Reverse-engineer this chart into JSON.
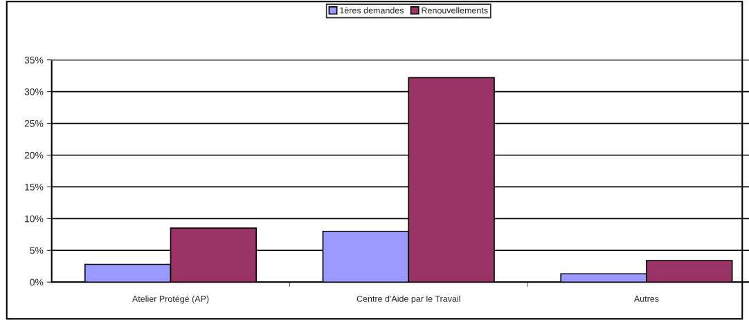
{
  "chart_data": {
    "type": "bar",
    "categories": [
      "Atelier Protégé (AP)",
      "Centre d'Aide par le Travail",
      "Autres"
    ],
    "series": [
      {
        "name": "1ères demandes",
        "color": "#9999ff",
        "values": [
          2.8,
          8.0,
          1.3
        ]
      },
      {
        "name": "Renouvellements",
        "color": "#993366",
        "values": [
          8.5,
          32.2,
          3.4
        ]
      }
    ],
    "ylim": [
      0,
      35
    ],
    "yticks": [
      {
        "value": 0,
        "label": "0%"
      },
      {
        "value": 5,
        "label": "5%"
      },
      {
        "value": 10,
        "label": "10%"
      },
      {
        "value": 15,
        "label": "15%"
      },
      {
        "value": 20,
        "label": "20%"
      },
      {
        "value": 25,
        "label": "25%"
      },
      {
        "value": 30,
        "label": "30%"
      },
      {
        "value": 35,
        "label": "35%"
      }
    ],
    "grid": "y",
    "legend": "top"
  }
}
